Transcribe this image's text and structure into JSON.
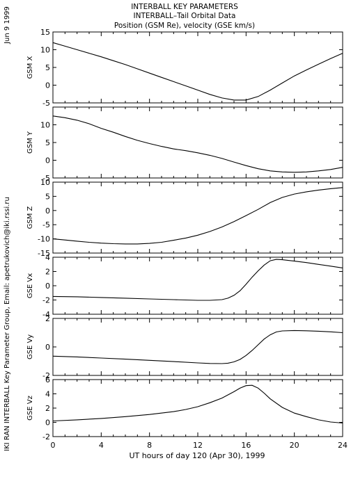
{
  "header": {
    "date": "Jun  9 1999",
    "title": "INTERBALL KEY PARAMETERS",
    "subtitle": "INTERBALL–Tail Orbital Data",
    "description": "Position (GSM Re), velocity (GSE km/s)"
  },
  "side_credit": "IKI RAN INTERBALL Key Parameter Group, Email: apetrukovich@iki.rssi.ru",
  "chart_data": {
    "type": "line",
    "line_color": "#000000",
    "grid": false,
    "xlabel": "UT hours of day 120 (Apr 30), 1999",
    "xlim": [
      0,
      24
    ],
    "xticks": [
      0,
      4,
      8,
      12,
      16,
      20,
      24
    ],
    "panels": [
      {
        "ylabel": "GSM X",
        "ylim": [
          -5,
          15
        ],
        "yticks": [
          -5,
          0,
          5,
          10,
          15
        ],
        "x": [
          0,
          1,
          2,
          3,
          4,
          5,
          6,
          7,
          8,
          9,
          10,
          11,
          12,
          13,
          14,
          15,
          16,
          17,
          18,
          19,
          20,
          21,
          22,
          23,
          24
        ],
        "y": [
          12.0,
          11.0,
          10.0,
          9.0,
          8.0,
          6.9,
          5.8,
          4.6,
          3.4,
          2.2,
          1.0,
          -0.2,
          -1.4,
          -2.6,
          -3.6,
          -4.2,
          -4.2,
          -3.2,
          -1.4,
          0.6,
          2.6,
          4.3,
          5.9,
          7.5,
          9.0
        ]
      },
      {
        "ylabel": "GSM Y",
        "ylim": [
          -5,
          15
        ],
        "yticks": [
          -5,
          0,
          5,
          10
        ],
        "x": [
          0,
          1,
          2,
          3,
          4,
          5,
          6,
          7,
          8,
          9,
          10,
          11,
          12,
          13,
          14,
          15,
          16,
          17,
          18,
          19,
          20,
          21,
          22,
          23,
          24
        ],
        "y": [
          12.5,
          12.0,
          11.3,
          10.3,
          9.0,
          7.9,
          6.7,
          5.6,
          4.7,
          3.9,
          3.2,
          2.7,
          2.1,
          1.4,
          0.5,
          -0.5,
          -1.5,
          -2.4,
          -3.0,
          -3.3,
          -3.4,
          -3.3,
          -3.0,
          -2.6,
          -2.0
        ]
      },
      {
        "ylabel": "GSM Z",
        "ylim": [
          -15,
          10
        ],
        "yticks": [
          -15,
          -10,
          -5,
          0,
          5,
          10
        ],
        "x": [
          0,
          1,
          2,
          3,
          4,
          5,
          6,
          7,
          8,
          9,
          10,
          11,
          12,
          13,
          14,
          15,
          16,
          17,
          18,
          19,
          20,
          21,
          22,
          23,
          24
        ],
        "y": [
          -10.0,
          -10.4,
          -10.8,
          -11.2,
          -11.5,
          -11.7,
          -11.8,
          -11.8,
          -11.6,
          -11.2,
          -10.5,
          -9.7,
          -8.7,
          -7.4,
          -5.8,
          -3.9,
          -1.8,
          0.4,
          2.8,
          4.6,
          5.8,
          6.6,
          7.2,
          7.7,
          8.1
        ]
      },
      {
        "ylabel": "GSE Vx",
        "ylim": [
          -4,
          4
        ],
        "yticks": [
          -4,
          -2,
          0,
          2,
          4
        ],
        "x": [
          0,
          2,
          4,
          6,
          8,
          10,
          12,
          13,
          14,
          14.5,
          15,
          15.5,
          16,
          16.5,
          17,
          17.5,
          18,
          18.5,
          19,
          20,
          21,
          22,
          23,
          24
        ],
        "y": [
          -1.5,
          -1.55,
          -1.65,
          -1.75,
          -1.85,
          -1.95,
          -2.05,
          -2.05,
          -1.95,
          -1.75,
          -1.35,
          -0.7,
          0.2,
          1.2,
          2.1,
          2.9,
          3.5,
          3.7,
          3.65,
          3.45,
          3.25,
          3.0,
          2.75,
          2.5
        ]
      },
      {
        "ylabel": "GSE Vy",
        "ylim": [
          -2,
          2
        ],
        "yticks": [
          -2,
          0,
          2
        ],
        "x": [
          0,
          2,
          4,
          6,
          8,
          10,
          12,
          13,
          14,
          14.5,
          15,
          15.5,
          16,
          16.5,
          17,
          17.5,
          18,
          18.5,
          19,
          20,
          21,
          22,
          23,
          24
        ],
        "y": [
          -0.65,
          -0.7,
          -0.78,
          -0.86,
          -0.94,
          -1.03,
          -1.12,
          -1.16,
          -1.17,
          -1.14,
          -1.05,
          -0.88,
          -0.6,
          -0.25,
          0.15,
          0.55,
          0.85,
          1.05,
          1.12,
          1.15,
          1.13,
          1.1,
          1.06,
          1.0
        ]
      },
      {
        "ylabel": "GSE Vz",
        "ylim": [
          -2,
          6
        ],
        "yticks": [
          -2,
          0,
          2,
          4,
          6
        ],
        "x": [
          0,
          2,
          4,
          6,
          8,
          10,
          11,
          12,
          13,
          14,
          15,
          15.5,
          16,
          16.5,
          17,
          17.5,
          18,
          19,
          20,
          21,
          22,
          23,
          24
        ],
        "y": [
          0.2,
          0.35,
          0.55,
          0.8,
          1.1,
          1.5,
          1.8,
          2.2,
          2.75,
          3.4,
          4.3,
          4.8,
          5.15,
          5.2,
          4.8,
          4.1,
          3.3,
          2.1,
          1.3,
          0.8,
          0.35,
          0.05,
          -0.1
        ]
      }
    ]
  }
}
